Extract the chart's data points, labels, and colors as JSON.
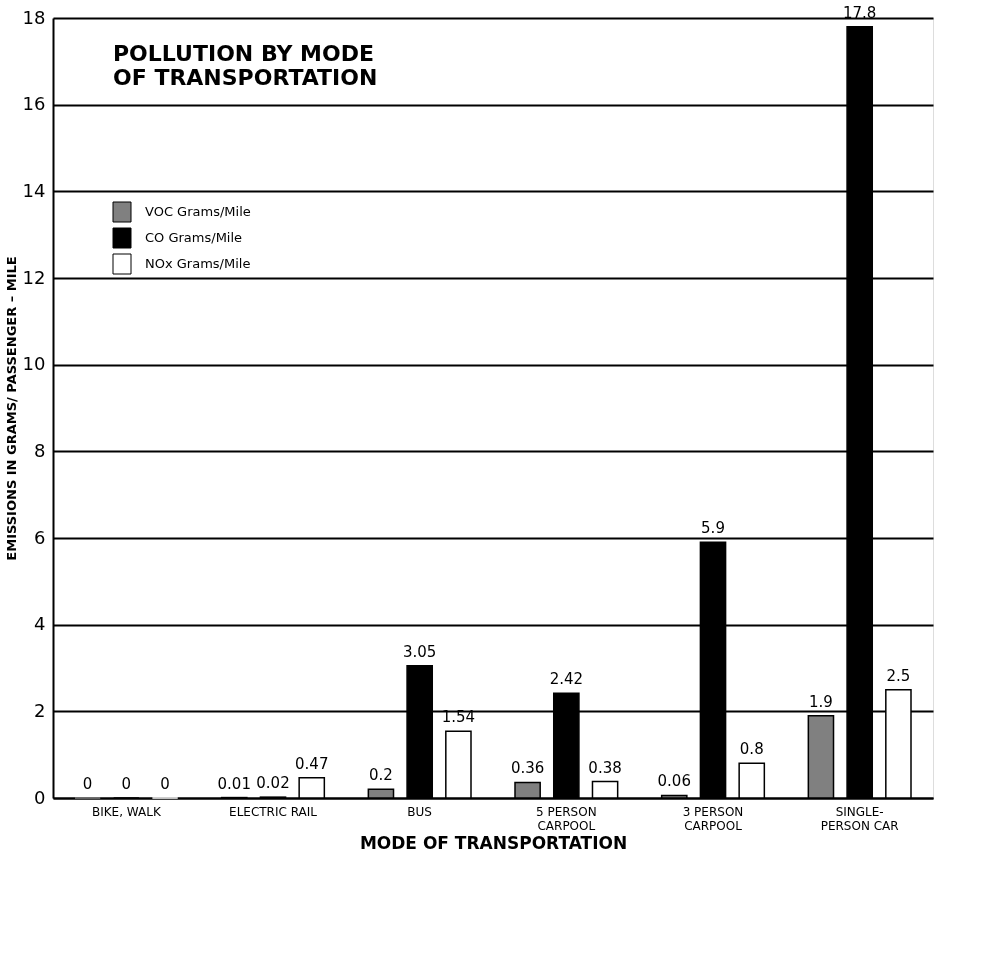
{
  "chart_data": {
    "type": "bar",
    "title": "POLLUTION BY MODE\nOF TRANSPORTATION",
    "xlabel": "MODE OF TRANSPORTATION",
    "ylabel": "EMISSIONS IN GRAMS/ PASSENGER – MILE",
    "categories": [
      "BIKE, WALK",
      "ELECTRIC RAIL",
      "BUS",
      "5 PERSON\nCARPOOL",
      "3 PERSON\nCARPOOL",
      "SINGLE-\nPERSON CAR"
    ],
    "series": [
      {
        "name": "VOC Grams/Mile",
        "color": "#808080",
        "values": [
          0,
          0.01,
          0.2,
          0.36,
          0.06,
          1.9
        ]
      },
      {
        "name": "CO Grams/Mile",
        "color": "#000000",
        "values": [
          0,
          0.02,
          3.05,
          2.42,
          5.9,
          17.8
        ]
      },
      {
        "name": "NOx Grams/Mile",
        "color": "#ffffff",
        "values": [
          0,
          0.47,
          1.54,
          0.38,
          0.8,
          2.5
        ]
      }
    ],
    "ylim": [
      0,
      18
    ],
    "yticks": [
      0,
      2,
      4,
      6,
      8,
      10,
      12,
      14,
      16,
      18
    ],
    "grid": "y",
    "legend": "top left",
    "data_labels": true
  }
}
